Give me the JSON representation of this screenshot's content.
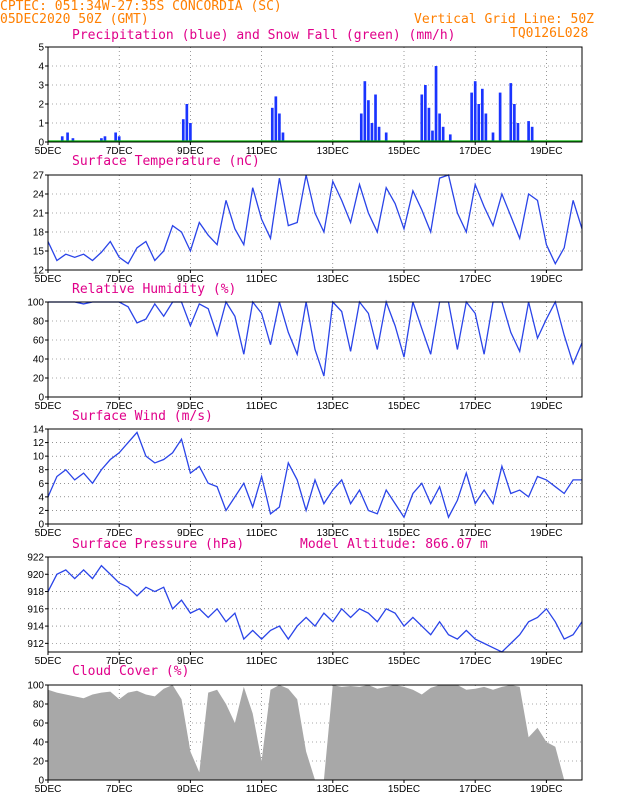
{
  "header": {
    "line1": "CPTEC:   051:34W-27:35S   CONCORDIA (SC)",
    "line2": "05DEC2020 50Z (GMT)",
    "grid_note": "Vertical Grid Line: 50Z",
    "code": "TQ0126L028"
  },
  "x_axis": {
    "tick_labels": [
      "5DEC",
      "7DEC",
      "9DEC",
      "11DEC",
      "13DEC",
      "15DEC",
      "17DEC",
      "19DEC"
    ],
    "tick_days": [
      0,
      2,
      4,
      6,
      8,
      10,
      12,
      14
    ],
    "range_days": [
      0,
      15
    ]
  },
  "colors": {
    "header": "#ff7f00",
    "title": "#e0008a",
    "precip": "#1a34ff",
    "snow": "#00b000",
    "line": "#2a44e8",
    "cloud": "#a8a8a8"
  },
  "chart_data": [
    {
      "type": "bar",
      "title": "Precipitation (blue) and Snow Fall (green) (mm/h)",
      "ylim": [
        0,
        5
      ],
      "yticks": [
        0,
        1,
        2,
        3,
        4,
        5
      ],
      "series": [
        {
          "name": "Precipitation",
          "x": [
            0.4,
            0.55,
            0.7,
            1.5,
            1.6,
            1.9,
            2.0,
            3.8,
            3.9,
            4.0,
            6.3,
            6.4,
            6.5,
            6.6,
            8.8,
            8.9,
            9.0,
            9.1,
            9.2,
            9.3,
            9.5,
            10.5,
            10.6,
            10.7,
            10.8,
            10.9,
            11.0,
            11.1,
            11.3,
            11.9,
            12.0,
            12.1,
            12.2,
            12.3,
            12.5,
            12.7,
            13.0,
            13.1,
            13.2,
            13.5,
            13.6
          ],
          "values": [
            0.3,
            0.5,
            0.2,
            0.2,
            0.3,
            0.5,
            0.3,
            1.2,
            2.0,
            1.0,
            1.8,
            2.4,
            1.5,
            0.5,
            1.5,
            3.2,
            2.2,
            1.0,
            2.5,
            0.8,
            0.5,
            2.5,
            3.0,
            1.8,
            0.6,
            4.0,
            1.5,
            0.8,
            0.4,
            2.6,
            3.2,
            2.0,
            2.8,
            1.5,
            0.5,
            2.6,
            3.1,
            2.0,
            1.0,
            1.1,
            0.8
          ]
        },
        {
          "name": "Snow Fall",
          "x": [],
          "values": []
        }
      ]
    },
    {
      "type": "line",
      "title": "Surface Temperature (nC)",
      "ylim": [
        12,
        27
      ],
      "yticks": [
        12,
        15,
        18,
        21,
        24,
        27
      ],
      "x": [
        0,
        0.25,
        0.5,
        0.75,
        1.0,
        1.25,
        1.5,
        1.75,
        2.0,
        2.25,
        2.5,
        2.75,
        3.0,
        3.25,
        3.5,
        3.75,
        4.0,
        4.25,
        4.5,
        4.75,
        5.0,
        5.25,
        5.5,
        5.75,
        6.0,
        6.25,
        6.5,
        6.75,
        7.0,
        7.25,
        7.5,
        7.75,
        8.0,
        8.25,
        8.5,
        8.75,
        9.0,
        9.25,
        9.5,
        9.75,
        10.0,
        10.25,
        10.5,
        10.75,
        11.0,
        11.25,
        11.5,
        11.75,
        12.0,
        12.25,
        12.5,
        12.75,
        13.0,
        13.25,
        13.5,
        13.75,
        14.0,
        14.25,
        14.5,
        14.75,
        15.0
      ],
      "values": [
        16.5,
        13.5,
        14.5,
        14.0,
        14.5,
        13.5,
        14.8,
        16.5,
        14.0,
        13.0,
        15.5,
        16.5,
        13.5,
        15.0,
        19.0,
        18.0,
        15.0,
        19.5,
        17.5,
        16.0,
        23.0,
        18.5,
        16.0,
        25.0,
        20.0,
        17.0,
        26.5,
        19.0,
        19.5,
        27.0,
        21.0,
        18.0,
        26.0,
        23.0,
        19.5,
        25.5,
        21.0,
        18.0,
        25.0,
        22.5,
        18.5,
        24.5,
        21.5,
        18.0,
        26.5,
        27.0,
        21.0,
        18.0,
        25.5,
        22.0,
        19.0,
        24.0,
        20.5,
        17.0,
        24.0,
        23.0,
        16.0,
        13.0,
        15.5,
        23.0,
        18.5
      ]
    },
    {
      "type": "line",
      "title": "Relative Humidity (%)",
      "ylim": [
        0,
        100
      ],
      "yticks": [
        0,
        20,
        40,
        60,
        80,
        100
      ],
      "x": [
        0,
        0.25,
        0.5,
        0.75,
        1.0,
        1.25,
        1.5,
        1.75,
        2.0,
        2.25,
        2.5,
        2.75,
        3.0,
        3.25,
        3.5,
        3.75,
        4.0,
        4.25,
        4.5,
        4.75,
        5.0,
        5.25,
        5.5,
        5.75,
        6.0,
        6.25,
        6.5,
        6.75,
        7.0,
        7.25,
        7.5,
        7.75,
        8.0,
        8.25,
        8.5,
        8.75,
        9.0,
        9.25,
        9.5,
        9.75,
        10.0,
        10.25,
        10.5,
        10.75,
        11.0,
        11.25,
        11.5,
        11.75,
        12.0,
        12.25,
        12.5,
        12.75,
        13.0,
        13.25,
        13.5,
        13.75,
        14.0,
        14.25,
        14.5,
        14.75,
        15.0
      ],
      "values": [
        100,
        100,
        100,
        100,
        98,
        100,
        100,
        100,
        100,
        95,
        78,
        82,
        98,
        85,
        100,
        100,
        75,
        98,
        93,
        65,
        100,
        85,
        45,
        100,
        88,
        55,
        100,
        68,
        45,
        100,
        50,
        22,
        100,
        90,
        48,
        100,
        88,
        50,
        100,
        75,
        42,
        100,
        72,
        45,
        100,
        100,
        50,
        100,
        88,
        45,
        100,
        100,
        68,
        48,
        100,
        62,
        82,
        100,
        65,
        35,
        57
      ]
    },
    {
      "type": "line",
      "title": "Surface Wind (m/s)",
      "ylim": [
        0,
        14
      ],
      "yticks": [
        0,
        2,
        4,
        6,
        8,
        10,
        12,
        14
      ],
      "x": [
        0,
        0.25,
        0.5,
        0.75,
        1.0,
        1.25,
        1.5,
        1.75,
        2.0,
        2.25,
        2.5,
        2.75,
        3.0,
        3.25,
        3.5,
        3.75,
        4.0,
        4.25,
        4.5,
        4.75,
        5.0,
        5.25,
        5.5,
        5.75,
        6.0,
        6.25,
        6.5,
        6.75,
        7.0,
        7.25,
        7.5,
        7.75,
        8.0,
        8.25,
        8.5,
        8.75,
        9.0,
        9.25,
        9.5,
        9.75,
        10.0,
        10.25,
        10.5,
        10.75,
        11.0,
        11.25,
        11.5,
        11.75,
        12.0,
        12.25,
        12.5,
        12.75,
        13.0,
        13.25,
        13.5,
        13.75,
        14.0,
        14.25,
        14.5,
        14.75,
        15.0
      ],
      "values": [
        4.0,
        7.0,
        8.0,
        6.5,
        7.5,
        6.0,
        8.0,
        9.5,
        10.5,
        12.0,
        13.5,
        10.0,
        9.0,
        9.5,
        10.5,
        12.5,
        7.5,
        8.5,
        6.0,
        5.5,
        2.0,
        4.0,
        6.0,
        2.5,
        7.0,
        1.5,
        2.5,
        9.0,
        6.5,
        2.0,
        6.5,
        3.0,
        5.0,
        6.5,
        3.0,
        5.0,
        2.0,
        1.5,
        5.0,
        3.0,
        1.0,
        4.5,
        6.0,
        3.0,
        5.5,
        1.0,
        3.5,
        7.5,
        3.0,
        5.0,
        3.0,
        8.5,
        4.5,
        5.0,
        4.0,
        7.0,
        6.5,
        5.5,
        4.5,
        6.5,
        6.5
      ]
    },
    {
      "type": "line",
      "title": "Surface Pressure (hPa)",
      "annotation": "Model Altitude: 866.07 m",
      "ylim": [
        911,
        922
      ],
      "yticks": [
        912,
        914,
        916,
        918,
        920,
        922
      ],
      "x": [
        0,
        0.25,
        0.5,
        0.75,
        1.0,
        1.25,
        1.5,
        1.75,
        2.0,
        2.25,
        2.5,
        2.75,
        3.0,
        3.25,
        3.5,
        3.75,
        4.0,
        4.25,
        4.5,
        4.75,
        5.0,
        5.25,
        5.5,
        5.75,
        6.0,
        6.25,
        6.5,
        6.75,
        7.0,
        7.25,
        7.5,
        7.75,
        8.0,
        8.25,
        8.5,
        8.75,
        9.0,
        9.25,
        9.5,
        9.75,
        10.0,
        10.25,
        10.5,
        10.75,
        11.0,
        11.25,
        11.5,
        11.75,
        12.0,
        12.25,
        12.5,
        12.75,
        13.0,
        13.25,
        13.5,
        13.75,
        14.0,
        14.25,
        14.5,
        14.75,
        15.0
      ],
      "values": [
        918.0,
        920.0,
        920.5,
        919.5,
        920.5,
        919.5,
        921.0,
        920.0,
        919.0,
        918.5,
        917.5,
        918.5,
        918.0,
        918.5,
        916.0,
        917.0,
        915.5,
        916.0,
        915.0,
        916.0,
        914.5,
        915.5,
        912.5,
        913.5,
        912.5,
        913.5,
        914.0,
        912.5,
        914.0,
        915.0,
        914.0,
        915.5,
        914.5,
        916.0,
        915.0,
        916.0,
        915.5,
        914.5,
        916.0,
        915.5,
        914.0,
        915.0,
        914.0,
        913.0,
        914.5,
        913.0,
        912.5,
        913.5,
        912.5,
        912.0,
        911.5,
        911.0,
        912.0,
        913.0,
        914.5,
        915.0,
        916.0,
        914.5,
        912.5,
        913.0,
        914.5
      ]
    },
    {
      "type": "area",
      "title": "Cloud Cover (%)",
      "ylim": [
        0,
        100
      ],
      "yticks": [
        0,
        20,
        40,
        60,
        80,
        100
      ],
      "x": [
        0,
        0.25,
        0.5,
        0.75,
        1.0,
        1.25,
        1.5,
        1.75,
        2.0,
        2.25,
        2.5,
        2.75,
        3.0,
        3.25,
        3.5,
        3.75,
        4.0,
        4.25,
        4.5,
        4.75,
        5.0,
        5.25,
        5.5,
        5.75,
        6.0,
        6.25,
        6.5,
        6.75,
        7.0,
        7.25,
        7.5,
        7.75,
        8.0,
        8.25,
        8.5,
        8.75,
        9.0,
        9.25,
        9.5,
        9.75,
        10.0,
        10.25,
        10.5,
        10.75,
        11.0,
        11.25,
        11.5,
        11.75,
        12.0,
        12.25,
        12.5,
        12.75,
        13.0,
        13.25,
        13.5,
        13.75,
        14.0,
        14.25,
        14.5,
        14.75,
        15.0
      ],
      "values": [
        95,
        92,
        90,
        88,
        86,
        90,
        92,
        93,
        85,
        92,
        94,
        90,
        88,
        96,
        100,
        85,
        30,
        8,
        92,
        95,
        80,
        60,
        98,
        70,
        20,
        95,
        100,
        96,
        85,
        30,
        0,
        0,
        100,
        98,
        99,
        98,
        100,
        96,
        98,
        100,
        98,
        95,
        90,
        97,
        100,
        100,
        100,
        95,
        96,
        98,
        95,
        98,
        100,
        98,
        45,
        55,
        40,
        35,
        0,
        0,
        0
      ]
    }
  ]
}
